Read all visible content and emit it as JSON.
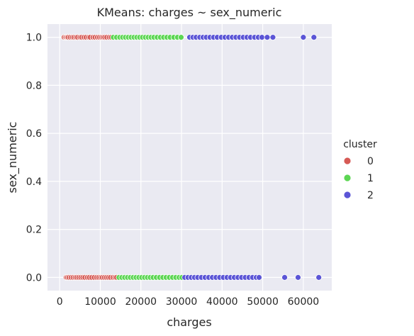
{
  "chart_data": {
    "type": "scatter",
    "title": "KMeans: charges ~ sex_numeric",
    "xlabel": "charges",
    "ylabel": "sex_numeric",
    "xlim": [
      -3000,
      67000
    ],
    "ylim": [
      -0.055,
      1.055
    ],
    "xticks": [
      0,
      10000,
      20000,
      30000,
      40000,
      50000,
      60000
    ],
    "xtick_labels": [
      "0",
      "10000",
      "20000",
      "30000",
      "40000",
      "50000",
      "60000"
    ],
    "yticks": [
      0.0,
      0.2,
      0.4,
      0.6,
      0.8,
      1.0
    ],
    "ytick_labels": [
      "0.0",
      "0.2",
      "0.4",
      "0.6",
      "0.8",
      "1.0"
    ],
    "grid": true,
    "legend": {
      "title": "cluster",
      "placement": "right",
      "entries": [
        "0",
        "1",
        "2"
      ]
    },
    "series": [
      {
        "name": "0",
        "color": "#d65a55",
        "points": [
          [
            1100,
            1
          ],
          [
            1500,
            1
          ],
          [
            1800,
            1
          ],
          [
            2100,
            1
          ],
          [
            2600,
            1
          ],
          [
            3100,
            1
          ],
          [
            3500,
            1
          ],
          [
            4000,
            1
          ],
          [
            4400,
            1
          ],
          [
            5000,
            1
          ],
          [
            5400,
            1
          ],
          [
            6000,
            1
          ],
          [
            6500,
            1
          ],
          [
            7100,
            1
          ],
          [
            7500,
            1
          ],
          [
            8200,
            1
          ],
          [
            8700,
            1
          ],
          [
            9300,
            1
          ],
          [
            9800,
            1
          ],
          [
            10300,
            1
          ],
          [
            10700,
            1
          ],
          [
            11100,
            1
          ],
          [
            11600,
            1
          ],
          [
            12200,
            1
          ],
          [
            12700,
            1
          ],
          [
            1600,
            0
          ],
          [
            1900,
            0
          ],
          [
            2300,
            0
          ],
          [
            2800,
            0
          ],
          [
            3300,
            0
          ],
          [
            3800,
            0
          ],
          [
            4200,
            0
          ],
          [
            4700,
            0
          ],
          [
            5200,
            0
          ],
          [
            5700,
            0
          ],
          [
            6200,
            0
          ],
          [
            6800,
            0
          ],
          [
            7300,
            0
          ],
          [
            7900,
            0
          ],
          [
            8500,
            0
          ],
          [
            9100,
            0
          ],
          [
            9600,
            0
          ],
          [
            10100,
            0
          ],
          [
            10500,
            0
          ],
          [
            11000,
            0
          ],
          [
            11500,
            0
          ],
          [
            12000,
            0
          ],
          [
            12500,
            0
          ],
          [
            13100,
            0
          ],
          [
            13600,
            0
          ],
          [
            14000,
            0
          ]
        ]
      },
      {
        "name": "1",
        "color": "#5cd653",
        "points": [
          [
            13200,
            1
          ],
          [
            14000,
            1
          ],
          [
            14800,
            1
          ],
          [
            15500,
            1
          ],
          [
            16200,
            1
          ],
          [
            16900,
            1
          ],
          [
            17600,
            1
          ],
          [
            18300,
            1
          ],
          [
            19000,
            1
          ],
          [
            19700,
            1
          ],
          [
            20400,
            1
          ],
          [
            21100,
            1
          ],
          [
            21800,
            1
          ],
          [
            22500,
            1
          ],
          [
            23200,
            1
          ],
          [
            24000,
            1
          ],
          [
            24800,
            1
          ],
          [
            25600,
            1
          ],
          [
            26400,
            1
          ],
          [
            27200,
            1
          ],
          [
            28100,
            1
          ],
          [
            29000,
            1
          ],
          [
            29900,
            1
          ],
          [
            14600,
            0
          ],
          [
            15300,
            0
          ],
          [
            16000,
            0
          ],
          [
            16700,
            0
          ],
          [
            17400,
            0
          ],
          [
            18100,
            0
          ],
          [
            18800,
            0
          ],
          [
            19500,
            0
          ],
          [
            20200,
            0
          ],
          [
            20900,
            0
          ],
          [
            21600,
            0
          ],
          [
            22300,
            0
          ],
          [
            23000,
            0
          ],
          [
            23800,
            0
          ],
          [
            24600,
            0
          ],
          [
            25400,
            0
          ],
          [
            26200,
            0
          ],
          [
            27000,
            0
          ],
          [
            27800,
            0
          ],
          [
            28600,
            0
          ],
          [
            29400,
            0
          ],
          [
            30100,
            0
          ]
        ]
      },
      {
        "name": "2",
        "color": "#5b55d6",
        "points": [
          [
            32000,
            1
          ],
          [
            32800,
            1
          ],
          [
            33600,
            1
          ],
          [
            34500,
            1
          ],
          [
            35300,
            1
          ],
          [
            36100,
            1
          ],
          [
            37000,
            1
          ],
          [
            37900,
            1
          ],
          [
            38800,
            1
          ],
          [
            39800,
            1
          ],
          [
            40700,
            1
          ],
          [
            41600,
            1
          ],
          [
            42500,
            1
          ],
          [
            43400,
            1
          ],
          [
            44300,
            1
          ],
          [
            45200,
            1
          ],
          [
            46100,
            1
          ],
          [
            47000,
            1
          ],
          [
            48000,
            1
          ],
          [
            48900,
            1
          ],
          [
            49800,
            1
          ],
          [
            51100,
            1
          ],
          [
            52500,
            1
          ],
          [
            60000,
            1
          ],
          [
            62600,
            1
          ],
          [
            30800,
            0
          ],
          [
            31600,
            0
          ],
          [
            32400,
            0
          ],
          [
            33200,
            0
          ],
          [
            34000,
            0
          ],
          [
            34900,
            0
          ],
          [
            35800,
            0
          ],
          [
            36700,
            0
          ],
          [
            37600,
            0
          ],
          [
            38500,
            0
          ],
          [
            39400,
            0
          ],
          [
            40300,
            0
          ],
          [
            41200,
            0
          ],
          [
            42100,
            0
          ],
          [
            43000,
            0
          ],
          [
            43900,
            0
          ],
          [
            44800,
            0
          ],
          [
            45700,
            0
          ],
          [
            46600,
            0
          ],
          [
            47500,
            0
          ],
          [
            48400,
            0
          ],
          [
            49100,
            0
          ],
          [
            55400,
            0
          ],
          [
            58700,
            0
          ],
          [
            63800,
            0
          ]
        ]
      }
    ]
  }
}
